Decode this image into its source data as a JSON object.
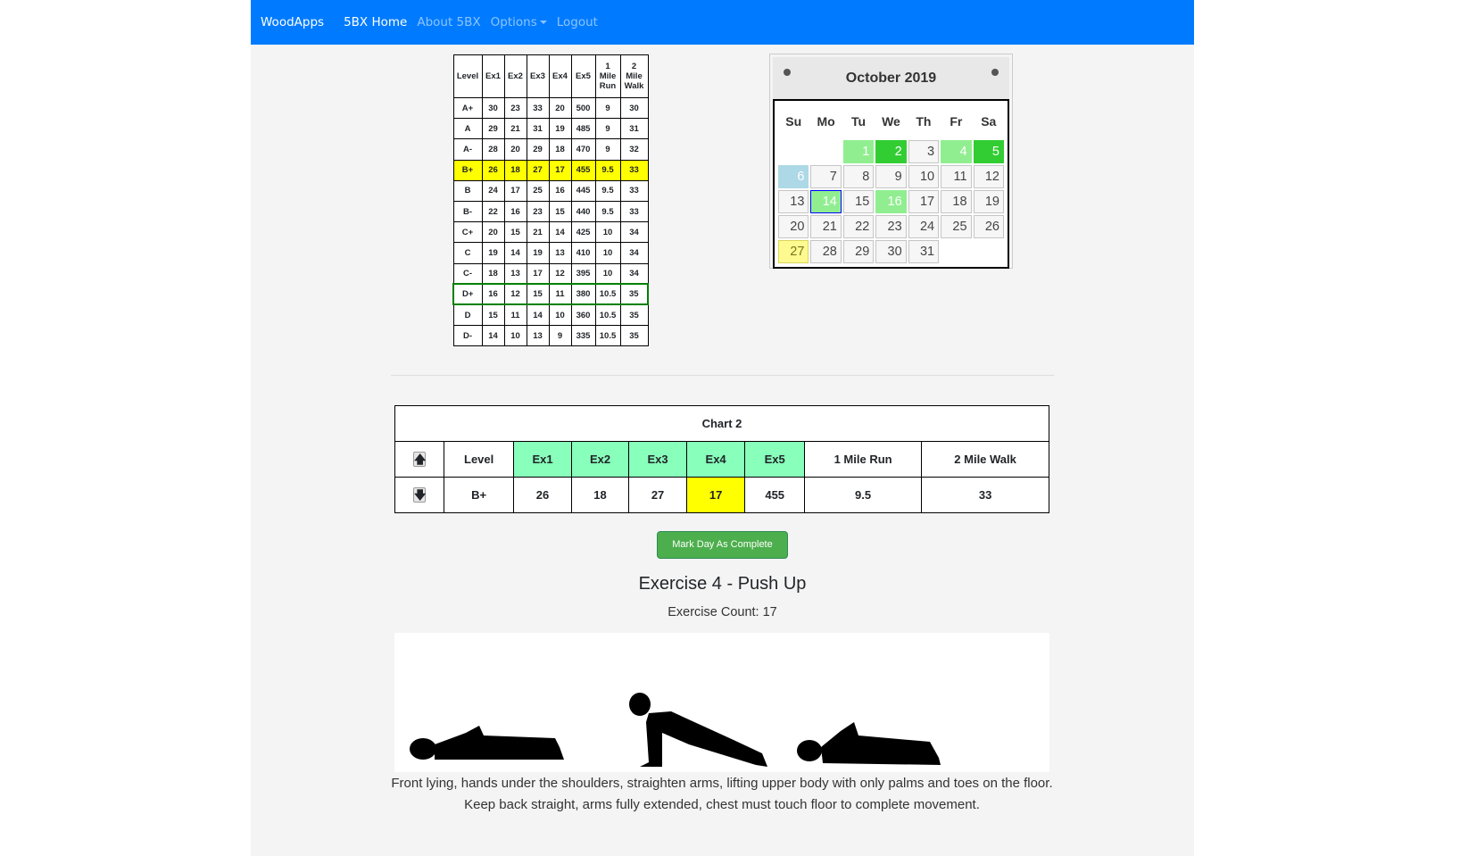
{
  "nav": {
    "brand": "WoodApps",
    "items": [
      {
        "label": "5BX Home",
        "active": true
      },
      {
        "label": "About 5BX"
      },
      {
        "label": "Options",
        "dropdown": true
      },
      {
        "label": "Logout"
      }
    ]
  },
  "ref_table": {
    "headers": [
      "Level",
      "Ex1",
      "Ex2",
      "Ex3",
      "Ex4",
      "Ex5",
      "1 Mile Run",
      "2 Mile Walk"
    ],
    "rows": [
      [
        "A+",
        "30",
        "23",
        "33",
        "20",
        "500",
        "9",
        "30"
      ],
      [
        "A",
        "29",
        "21",
        "31",
        "19",
        "485",
        "9",
        "31"
      ],
      [
        "A-",
        "28",
        "20",
        "29",
        "18",
        "470",
        "9",
        "32"
      ],
      [
        "B+",
        "26",
        "18",
        "27",
        "17",
        "455",
        "9.5",
        "33"
      ],
      [
        "B",
        "24",
        "17",
        "25",
        "16",
        "445",
        "9.5",
        "33"
      ],
      [
        "B-",
        "22",
        "16",
        "23",
        "15",
        "440",
        "9.5",
        "33"
      ],
      [
        "C+",
        "20",
        "15",
        "21",
        "14",
        "425",
        "10",
        "34"
      ],
      [
        "C",
        "19",
        "14",
        "19",
        "13",
        "410",
        "10",
        "34"
      ],
      [
        "C-",
        "18",
        "13",
        "17",
        "12",
        "395",
        "10",
        "34"
      ],
      [
        "D+",
        "16",
        "12",
        "15",
        "11",
        "380",
        "10.5",
        "35"
      ],
      [
        "D",
        "15",
        "11",
        "14",
        "10",
        "360",
        "10.5",
        "35"
      ],
      [
        "D-",
        "14",
        "10",
        "13",
        "9",
        "335",
        "10.5",
        "35"
      ]
    ],
    "highlight_row": "B+",
    "outlined_row": "D+",
    "highlight_color": "#ffff00",
    "outline_color": "#008000"
  },
  "calendar": {
    "title": "October 2019",
    "weekdays": [
      "Su",
      "Mo",
      "Tu",
      "We",
      "Th",
      "Fr",
      "Sa"
    ],
    "first_weekday": 2,
    "days": 31,
    "light_green_days": [
      1,
      4,
      14,
      16
    ],
    "dark_green_days": [
      2,
      5
    ],
    "blue_days": [
      6
    ],
    "today": 27,
    "selected": 14,
    "colors": {
      "light_green": "#90ee90",
      "dark_green": "#32cd32",
      "blue": "#add8e6",
      "today": "#fffa90"
    }
  },
  "chart2": {
    "title": "Chart 2",
    "headers": [
      "Level",
      "Ex1",
      "Ex2",
      "Ex3",
      "Ex4",
      "Ex5",
      "1 Mile Run",
      "2 Mile Walk"
    ],
    "values": [
      "B+",
      "26",
      "18",
      "27",
      "17",
      "455",
      "9.5",
      "33"
    ],
    "current_column": "Ex4",
    "up_icon": "arrow-up",
    "down_icon": "arrow-down",
    "up_glyph": "🡅",
    "down_glyph": "🡇"
  },
  "button": {
    "label": "Mark Day As Complete"
  },
  "exercise": {
    "title": "Exercise 4 - Push Up",
    "count": "Exercise Count: 17",
    "description": [
      "Front lying, hands under the shoulders, straighten arms, lifting upper body with only palms and toes on the floor.",
      "Keep back straight, arms fully extended, chest must touch floor to complete movement."
    ]
  }
}
